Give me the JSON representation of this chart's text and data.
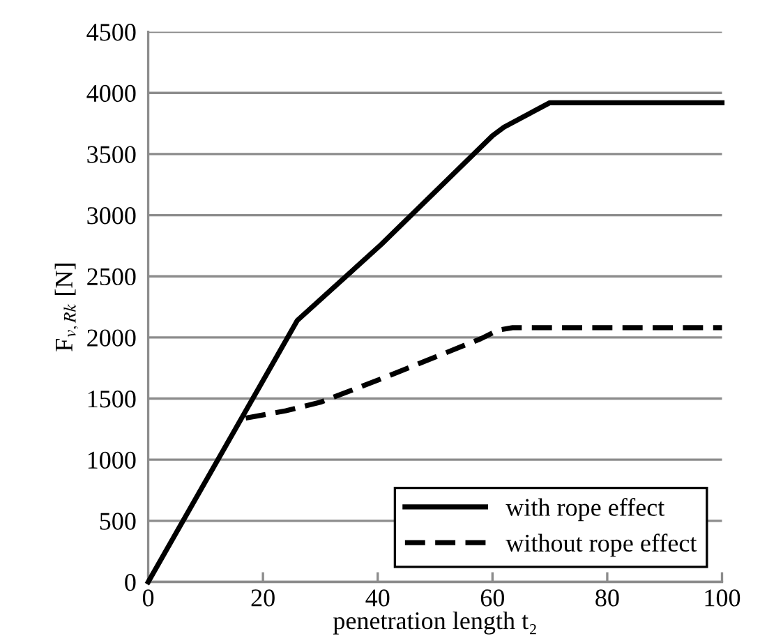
{
  "chart_data": {
    "type": "line",
    "xlabel": "penetration length t₂",
    "ylabel": "F$_{v,Rk}$ [N]",
    "xlim": [
      0,
      100
    ],
    "xticks": [
      0,
      20,
      40,
      60,
      80,
      100
    ],
    "ylim": [
      0,
      4500
    ],
    "yticks": [
      0,
      500,
      1000,
      1500,
      2000,
      2500,
      3000,
      3500,
      4000,
      4500
    ],
    "grid": "y",
    "legend": "bottom right",
    "marker": "none",
    "series": [
      {
        "name": "with rope effect",
        "color": "#000000",
        "line_style": "solid",
        "x": [
          0,
          26,
          40.6,
          60,
          62,
          70,
          100
        ],
        "values": [
          0,
          2140,
          2760,
          3650,
          3720,
          3920,
          3920
        ]
      },
      {
        "name": "without rope effect",
        "color": "#000000",
        "line_style": "dashed",
        "x": [
          17,
          24,
          30,
          40,
          49,
          58,
          61,
          63.5,
          100
        ],
        "values": [
          1340,
          1400,
          1470,
          1650,
          1820,
          1990,
          2060,
          2080,
          2080
        ]
      }
    ]
  }
}
